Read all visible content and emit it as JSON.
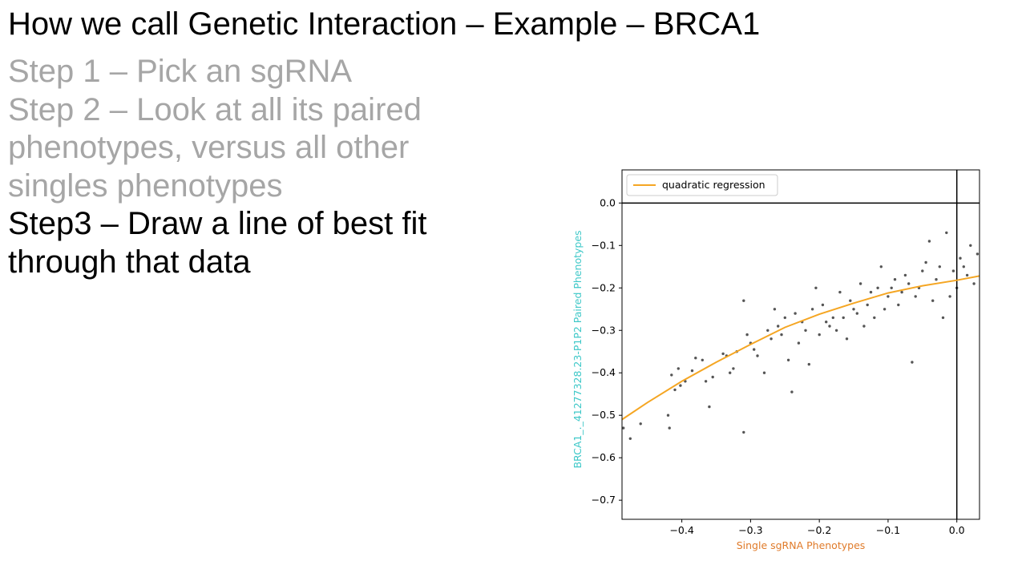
{
  "slide": {
    "title": "How we call Genetic Interaction – Example – BRCA1",
    "steps": [
      {
        "text": "Step 1 – Pick an sgRNA",
        "style": "grey"
      },
      {
        "text": "Step 2 – Look at all its paired",
        "style": "grey"
      },
      {
        "text": "phenotypes, versus all other",
        "style": "grey"
      },
      {
        "text": "singles phenotypes",
        "style": "grey"
      },
      {
        "text": "Step3 – Draw a line of best fit",
        "style": "black"
      },
      {
        "text": "through that data",
        "style": "black"
      }
    ],
    "colors": {
      "grey_text": "#a6a6a6",
      "black_text": "#000000"
    }
  },
  "chart_data": {
    "type": "scatter",
    "xlabel": "Single sgRNA Phenotypes",
    "ylabel": "BRCA1_._41277328.23-P1P2 Paired Phenotypes",
    "xlabel_color": "#e07b2a",
    "ylabel_color": "#3fc8c8",
    "xlim": [
      -0.487,
      0.033
    ],
    "ylim": [
      -0.745,
      0.078
    ],
    "xticks": [
      -0.4,
      -0.3,
      -0.2,
      -0.1,
      0.0
    ],
    "xtick_labels": [
      "−0.4",
      "−0.3",
      "−0.2",
      "−0.1",
      "0.0"
    ],
    "yticks": [
      0.0,
      -0.1,
      -0.2,
      -0.3,
      -0.4,
      -0.5,
      -0.6,
      -0.7
    ],
    "ytick_labels": [
      "0.0",
      "−0.1",
      "−0.2",
      "−0.3",
      "−0.4",
      "−0.5",
      "−0.6",
      "−0.7"
    ],
    "reference_lines": {
      "x": 0.0,
      "y": 0.0
    },
    "grid": false,
    "legend": {
      "placement": "top-left",
      "entries": [
        "quadratic regression"
      ]
    },
    "scatter_color": "#555555",
    "regression": {
      "name": "quadratic regression",
      "color": "#f5a623",
      "x": [
        -0.487,
        -0.45,
        -0.4,
        -0.35,
        -0.3,
        -0.25,
        -0.2,
        -0.15,
        -0.1,
        -0.05,
        0.0,
        0.033
      ],
      "y": [
        -0.51,
        -0.47,
        -0.42,
        -0.375,
        -0.333,
        -0.293,
        -0.262,
        -0.236,
        -0.212,
        -0.195,
        -0.182,
        -0.172
      ]
    },
    "points": [
      [
        -0.485,
        -0.53
      ],
      [
        -0.475,
        -0.555
      ],
      [
        -0.46,
        -0.52
      ],
      [
        -0.42,
        -0.5
      ],
      [
        -0.418,
        -0.53
      ],
      [
        -0.415,
        -0.405
      ],
      [
        -0.41,
        -0.44
      ],
      [
        -0.405,
        -0.39
      ],
      [
        -0.402,
        -0.43
      ],
      [
        -0.395,
        -0.42
      ],
      [
        -0.385,
        -0.395
      ],
      [
        -0.38,
        -0.365
      ],
      [
        -0.37,
        -0.37
      ],
      [
        -0.365,
        -0.42
      ],
      [
        -0.36,
        -0.48
      ],
      [
        -0.355,
        -0.41
      ],
      [
        -0.34,
        -0.355
      ],
      [
        -0.335,
        -0.36
      ],
      [
        -0.33,
        -0.4
      ],
      [
        -0.325,
        -0.39
      ],
      [
        -0.32,
        -0.35
      ],
      [
        -0.31,
        -0.23
      ],
      [
        -0.31,
        -0.54
      ],
      [
        -0.305,
        -0.31
      ],
      [
        -0.3,
        -0.33
      ],
      [
        -0.295,
        -0.345
      ],
      [
        -0.29,
        -0.36
      ],
      [
        -0.28,
        -0.4
      ],
      [
        -0.275,
        -0.3
      ],
      [
        -0.27,
        -0.32
      ],
      [
        -0.265,
        -0.25
      ],
      [
        -0.26,
        -0.29
      ],
      [
        -0.255,
        -0.31
      ],
      [
        -0.25,
        -0.27
      ],
      [
        -0.245,
        -0.37
      ],
      [
        -0.24,
        -0.445
      ],
      [
        -0.235,
        -0.26
      ],
      [
        -0.23,
        -0.33
      ],
      [
        -0.225,
        -0.28
      ],
      [
        -0.22,
        -0.3
      ],
      [
        -0.215,
        -0.38
      ],
      [
        -0.21,
        -0.25
      ],
      [
        -0.205,
        -0.2
      ],
      [
        -0.2,
        -0.31
      ],
      [
        -0.195,
        -0.24
      ],
      [
        -0.19,
        -0.28
      ],
      [
        -0.185,
        -0.29
      ],
      [
        -0.18,
        -0.27
      ],
      [
        -0.175,
        -0.3
      ],
      [
        -0.17,
        -0.21
      ],
      [
        -0.165,
        -0.27
      ],
      [
        -0.16,
        -0.32
      ],
      [
        -0.155,
        -0.23
      ],
      [
        -0.15,
        -0.25
      ],
      [
        -0.145,
        -0.26
      ],
      [
        -0.14,
        -0.19
      ],
      [
        -0.135,
        -0.29
      ],
      [
        -0.13,
        -0.24
      ],
      [
        -0.125,
        -0.21
      ],
      [
        -0.12,
        -0.27
      ],
      [
        -0.115,
        -0.2
      ],
      [
        -0.11,
        -0.15
      ],
      [
        -0.105,
        -0.25
      ],
      [
        -0.1,
        -0.22
      ],
      [
        -0.095,
        -0.2
      ],
      [
        -0.09,
        -0.18
      ],
      [
        -0.085,
        -0.24
      ],
      [
        -0.08,
        -0.21
      ],
      [
        -0.075,
        -0.17
      ],
      [
        -0.07,
        -0.19
      ],
      [
        -0.065,
        -0.375
      ],
      [
        -0.06,
        -0.22
      ],
      [
        -0.055,
        -0.2
      ],
      [
        -0.05,
        -0.16
      ],
      [
        -0.045,
        -0.14
      ],
      [
        -0.04,
        -0.09
      ],
      [
        -0.035,
        -0.23
      ],
      [
        -0.03,
        -0.18
      ],
      [
        -0.025,
        -0.15
      ],
      [
        -0.02,
        -0.27
      ],
      [
        -0.015,
        -0.07
      ],
      [
        -0.01,
        -0.22
      ],
      [
        -0.005,
        -0.16
      ],
      [
        0.0,
        -0.2
      ],
      [
        0.005,
        -0.13
      ],
      [
        0.01,
        -0.15
      ],
      [
        0.015,
        -0.17
      ],
      [
        0.02,
        -0.1
      ],
      [
        0.025,
        -0.19
      ],
      [
        0.03,
        -0.12
      ]
    ]
  }
}
